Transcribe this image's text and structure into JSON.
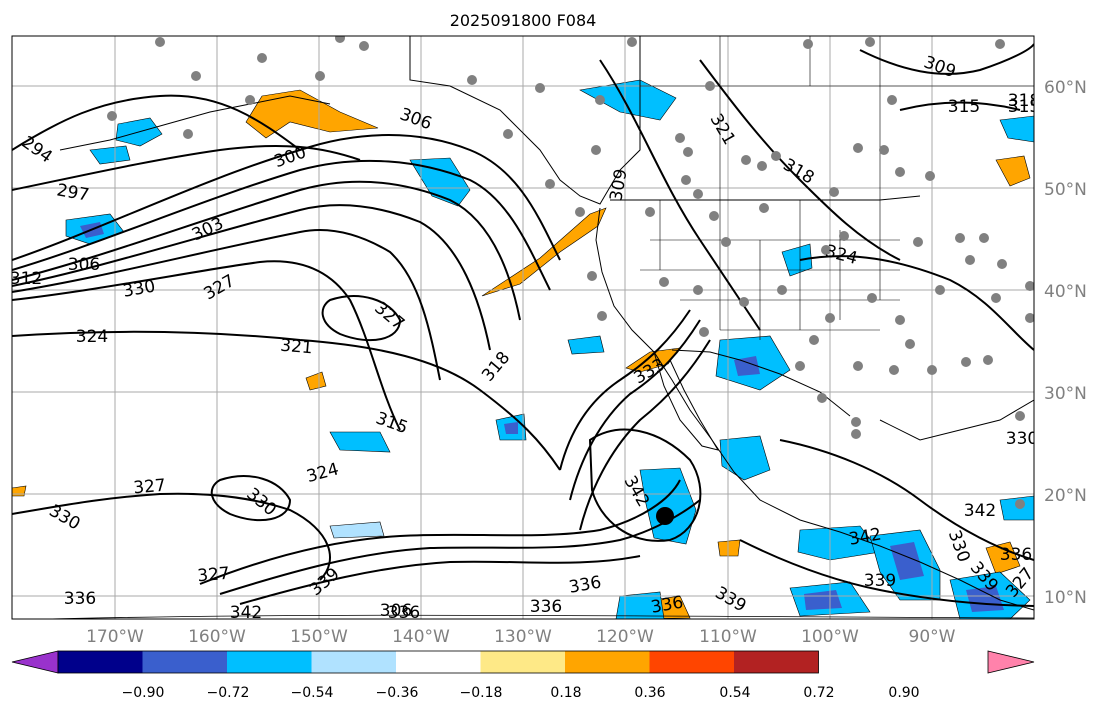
{
  "title": "2025091800 F084",
  "lat_labels": [
    "60°N",
    "50°N",
    "40°N",
    "30°N",
    "20°N",
    "10°N"
  ],
  "lon_labels": [
    "170°W",
    "160°W",
    "150°W",
    "140°W",
    "130°W",
    "120°W",
    "110°W",
    "100°W",
    "90°W"
  ],
  "colorbar": {
    "colors": [
      "#9932cc",
      "#00008b",
      "#3a5fcd",
      "#00bfff",
      "#b0e2ff",
      "#ffffff",
      "#fee987",
      "#ffa500",
      "#ff4500",
      "#b22222",
      "#ff82ab"
    ],
    "tick_labels": [
      "−0.90",
      "−0.72",
      "−0.54",
      "−0.36",
      "−0.18",
      "0.18",
      "0.36",
      "0.54",
      "0.72",
      "0.90"
    ]
  },
  "contour_labels": [
    "294",
    "297",
    "300",
    "303",
    "306",
    "306",
    "306",
    "309",
    "309",
    "312",
    "315",
    "315",
    "315",
    "318",
    "318",
    "318",
    "321",
    "321",
    "324",
    "324",
    "324",
    "327",
    "327",
    "327",
    "327",
    "327",
    "330",
    "330",
    "330",
    "330",
    "330",
    "333",
    "336",
    "336",
    "336",
    "336",
    "336",
    "336",
    "339",
    "339",
    "339",
    "339",
    "342",
    "342",
    "342",
    "342"
  ],
  "colors": {
    "contour": "#000000",
    "grid": "#a9a9a9",
    "border": "#000000",
    "station": "#808080",
    "axis_text": "#808080"
  }
}
